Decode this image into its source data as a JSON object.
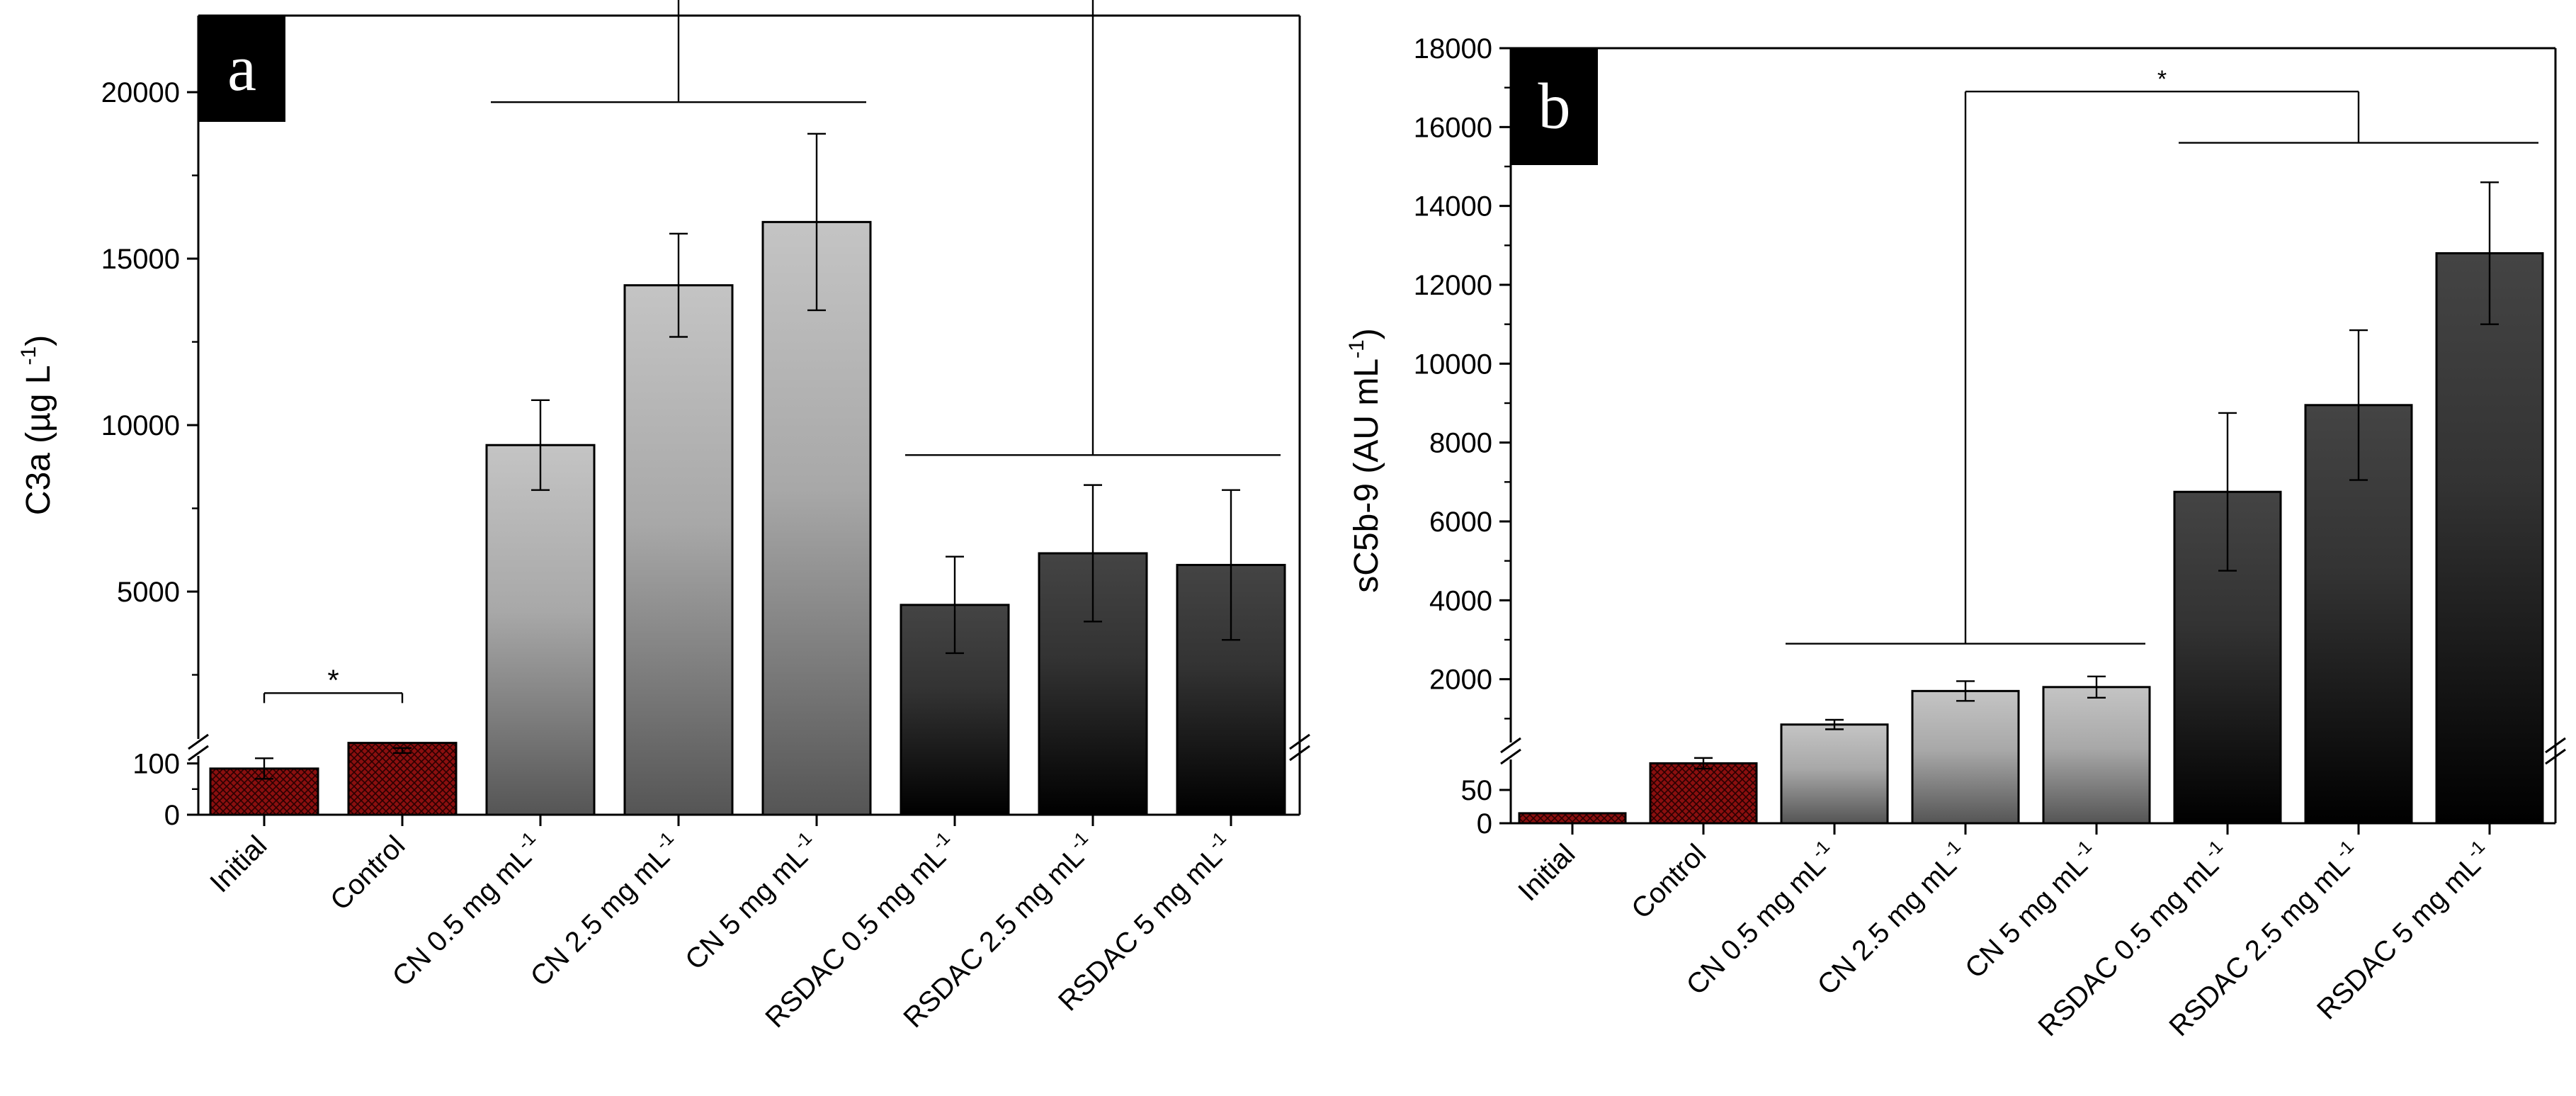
{
  "figure": {
    "fill_colors": {
      "checker_red": "#8b0f0f",
      "cn_gradient_top": "#c4c4c4",
      "cn_gradient_bottom": "#555555",
      "rsdac_gradient_top": "#444444",
      "rsdac_gradient_bottom": "#000000",
      "axis": "#000000"
    }
  },
  "chart_data": [
    {
      "type": "bar",
      "panel_label": "a",
      "ylabel": "C3a (µg L",
      "ylabel_sup": "-1",
      "ylabel_close": ")",
      "categories": [
        {
          "text": "Initial",
          "sup": ""
        },
        {
          "text": "Control",
          "sup": ""
        },
        {
          "text": "CN 0.5 mg mL",
          "sup": "-1"
        },
        {
          "text": "CN 2.5 mg mL",
          "sup": "-1"
        },
        {
          "text": "CN 5 mg mL",
          "sup": "-1"
        },
        {
          "text": "RSDAC 0.5 mg mL",
          "sup": "-1"
        },
        {
          "text": "RSDAC 2.5 mg mL",
          "sup": "-1"
        },
        {
          "text": "RSDAC 5 mg mL",
          "sup": "-1"
        }
      ],
      "fills": [
        "checker",
        "checker",
        "cn",
        "cn",
        "cn",
        "rsdac",
        "rsdac",
        "rsdac"
      ],
      "values": [
        90,
        140,
        9400,
        14200,
        16100,
        4600,
        6150,
        5800
      ],
      "errors": [
        20,
        10,
        1350,
        1550,
        2650,
        1450,
        2050,
        2250
      ],
      "broken_axis": {
        "lower": {
          "min": 0,
          "max": 145,
          "ticks": [
            0,
            100
          ],
          "tick_labels": [
            "0",
            "100"
          ],
          "minor": [
            50
          ]
        },
        "upper": {
          "min": 0,
          "max": 22300,
          "ticks": [
            5000,
            10000,
            15000,
            20000
          ],
          "tick_labels": [
            "5000",
            "10000",
            "15000",
            "20000"
          ],
          "minor": [
            2500,
            7500,
            12500,
            17500
          ]
        }
      },
      "significance": [
        {
          "label": "*",
          "type": "bar",
          "from": 0,
          "to": 1,
          "level": 1950
        },
        {
          "label": "*",
          "type": "group",
          "left_group": [
            2,
            4
          ],
          "left_level": 19700,
          "right_group": [
            5,
            7
          ],
          "right_level": 9100,
          "top_level": 23100
        }
      ]
    },
    {
      "type": "bar",
      "panel_label": "b",
      "ylabel": "sC5b-9 (AU mL",
      "ylabel_sup": "-1",
      "ylabel_close": ")",
      "categories": [
        {
          "text": "Initial",
          "sup": ""
        },
        {
          "text": "Control",
          "sup": ""
        },
        {
          "text": "CN 0.5 mg mL",
          "sup": "-1"
        },
        {
          "text": "CN 2.5 mg mL",
          "sup": "-1"
        },
        {
          "text": "CN 5 mg mL",
          "sup": "-1"
        },
        {
          "text": "RSDAC 0.5 mg mL",
          "sup": "-1"
        },
        {
          "text": "RSDAC 2.5 mg mL",
          "sup": "-1"
        },
        {
          "text": "RSDAC 5 mg mL",
          "sup": "-1"
        }
      ],
      "fills": [
        "checker",
        "checker",
        "cn",
        "cn",
        "cn",
        "rsdac",
        "rsdac",
        "rsdac"
      ],
      "values": [
        15,
        90,
        850,
        1700,
        1800,
        6750,
        8950,
        12800
      ],
      "errors": [
        0,
        8,
        120,
        250,
        270,
        2000,
        1900,
        1800
      ],
      "broken_axis": {
        "lower": {
          "min": 0,
          "max": 100,
          "ticks": [
            0,
            50
          ],
          "tick_labels": [
            "0",
            "50"
          ],
          "minor": []
        },
        "upper": {
          "min": 0,
          "max": 18000,
          "ticks": [
            2000,
            4000,
            6000,
            8000,
            10000,
            12000,
            14000,
            16000,
            18000
          ],
          "tick_labels": [
            "2000",
            "4000",
            "6000",
            "8000",
            "10000",
            "12000",
            "14000",
            "16000",
            "18000"
          ],
          "minor": [
            1000,
            3000,
            5000,
            7000,
            9000,
            11000,
            13000,
            15000,
            17000
          ]
        }
      },
      "significance": [
        {
          "label": "*",
          "type": "group",
          "left_group": [
            2,
            4
          ],
          "left_level": 2900,
          "right_group": [
            5,
            7
          ],
          "right_level": 15600,
          "top_level": 16900
        }
      ]
    }
  ]
}
